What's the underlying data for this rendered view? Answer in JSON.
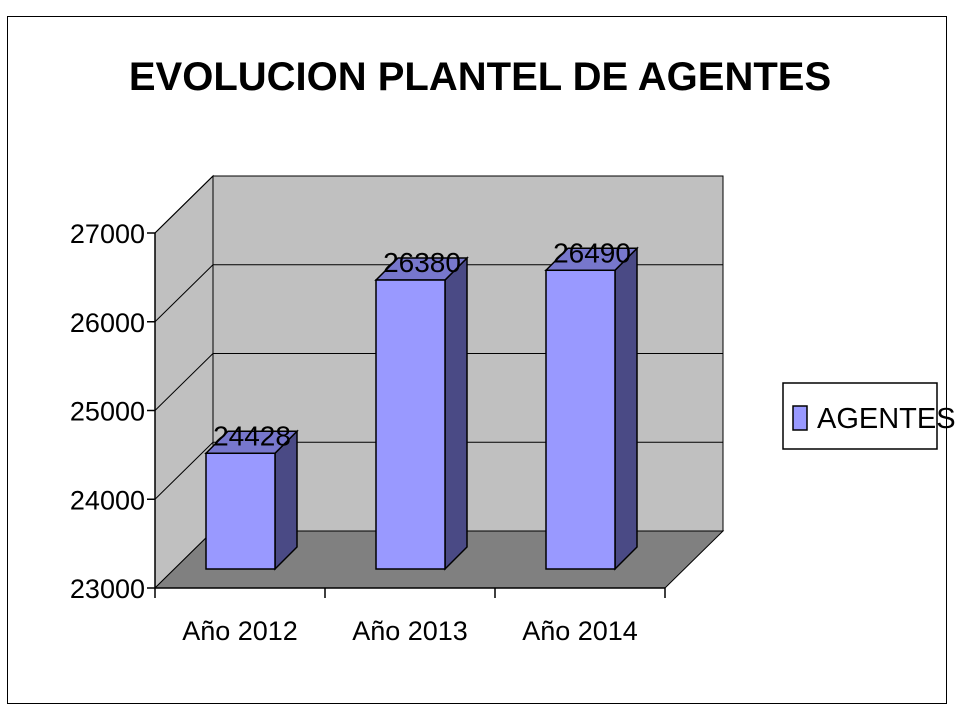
{
  "chart_data": {
    "type": "bar",
    "title": "EVOLUCION PLANTEL DE AGENTES",
    "categories": [
      "Año 2012",
      "Año 2013",
      "Año 2014"
    ],
    "series": [
      {
        "name": "AGENTES",
        "values": [
          24428,
          26380,
          26490
        ]
      }
    ],
    "ylim": [
      23000,
      27000
    ],
    "yticks": [
      23000,
      24000,
      25000,
      26000,
      27000
    ],
    "grid": true,
    "legend_position": "right",
    "three_d": true
  },
  "colors": {
    "bar_front": "#9999ff",
    "bar_top": "#7777cc",
    "bar_side": "#4a4a85",
    "back_wall": "#c0c0c0",
    "side_wall": "#c0c0c0",
    "floor": "#808080"
  }
}
